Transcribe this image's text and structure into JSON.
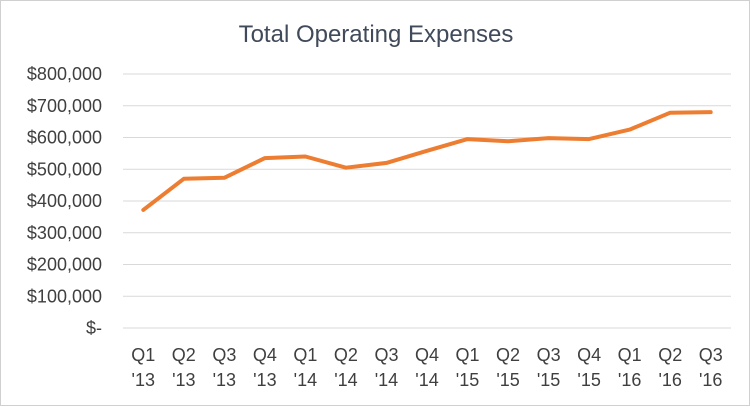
{
  "chart_data": {
    "type": "line",
    "title": "Total Operating Expenses",
    "xlabel": "",
    "ylabel": "",
    "categories": [
      [
        "Q1",
        "'13"
      ],
      [
        "Q2",
        "'13"
      ],
      [
        "Q3",
        "'13"
      ],
      [
        "Q4",
        "'13"
      ],
      [
        "Q1",
        "'14"
      ],
      [
        "Q2",
        "'14"
      ],
      [
        "Q3",
        "'14"
      ],
      [
        "Q4",
        "'14"
      ],
      [
        "Q1",
        "'15"
      ],
      [
        "Q2",
        "'15"
      ],
      [
        "Q3",
        "'15"
      ],
      [
        "Q4",
        "'15"
      ],
      [
        "Q1",
        "'16"
      ],
      [
        "Q2",
        "'16"
      ],
      [
        "Q3",
        "'16"
      ]
    ],
    "series": [
      {
        "name": "Total Operating Expenses",
        "color": "#ED7D31",
        "values": [
          372000,
          470000,
          473000,
          535000,
          540000,
          505000,
          520000,
          558000,
          595000,
          588000,
          598000,
          595000,
          625000,
          678000,
          680000
        ]
      }
    ],
    "ylim": [
      0,
      800000
    ],
    "ytick_values": [
      0,
      100000,
      200000,
      300000,
      400000,
      500000,
      600000,
      700000,
      800000
    ],
    "ytick_labels": [
      "$-",
      "$100,000",
      "$200,000",
      "$300,000",
      "$400,000",
      "$500,000",
      "$600,000",
      "$700,000",
      "$800,000"
    ],
    "grid": true,
    "legend": "none"
  }
}
